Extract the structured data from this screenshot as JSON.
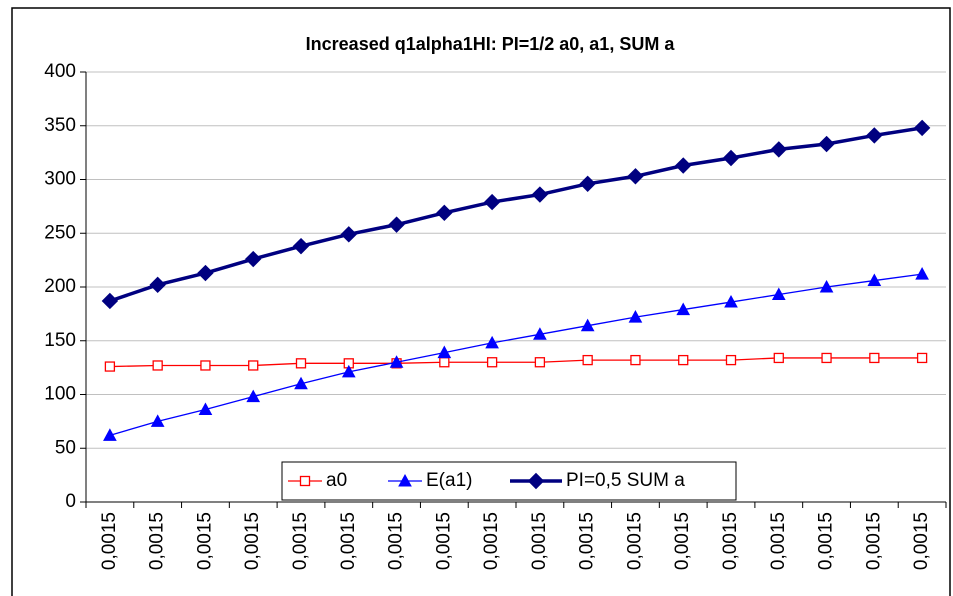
{
  "chart_data": {
    "type": "line",
    "title": "Increased q1alpha1HI: PI=1/2 a0, a1, SUM a",
    "categories": [
      "0,0015",
      "0,0015",
      "0,0015",
      "0,0015",
      "0,0015",
      "0,0015",
      "0,0015",
      "0,0015",
      "0,0015",
      "0,0015",
      "0,0015",
      "0,0015",
      "0,0015",
      "0,0015",
      "0,0015",
      "0,0015",
      "0,0015",
      "0,0015"
    ],
    "series": [
      {
        "name": "a0",
        "color": "#ff0000",
        "marker": "square",
        "values": [
          126,
          127,
          127,
          127,
          129,
          129,
          129,
          130,
          130,
          130,
          132,
          132,
          132,
          132,
          134,
          134,
          134,
          134
        ]
      },
      {
        "name": "E(a1)",
        "color": "#0000ff",
        "marker": "triangle",
        "values": [
          62,
          75,
          86,
          98,
          110,
          121,
          130,
          139,
          148,
          156,
          164,
          172,
          179,
          186,
          193,
          200,
          206,
          212
        ]
      },
      {
        "name": "PI=0,5 SUM a",
        "color": "#000080",
        "marker": "diamond",
        "values": [
          187,
          202,
          213,
          226,
          238,
          249,
          258,
          269,
          279,
          286,
          296,
          303,
          313,
          320,
          328,
          333,
          341,
          348
        ]
      }
    ],
    "ylim": [
      0,
      400
    ],
    "yticks": [
      0,
      50,
      100,
      150,
      200,
      250,
      300,
      350,
      400
    ],
    "grid": true,
    "legend": "bottom"
  }
}
